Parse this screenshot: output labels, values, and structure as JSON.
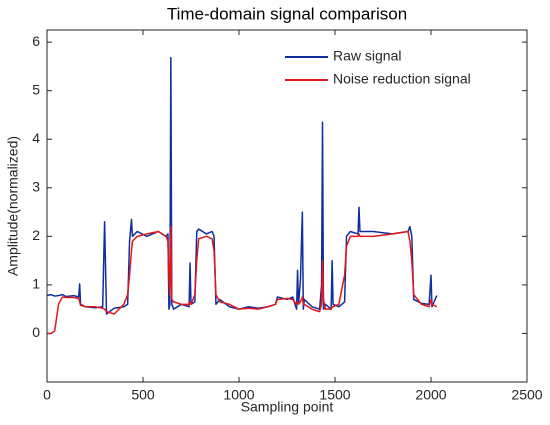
{
  "chart_data": {
    "type": "line",
    "title": "Time-domain signal comparison",
    "x_label": "Sampling point",
    "y_label": "Amplitude(normalized)",
    "xlim": [
      0,
      2500
    ],
    "ylim": [
      -1,
      6.25
    ],
    "xticks": [
      0,
      500,
      1000,
      1500,
      2000,
      2500
    ],
    "yticks": [
      0,
      1,
      2,
      3,
      4,
      5,
      6
    ],
    "legend": "upper right",
    "grid": false,
    "x": [
      0,
      20,
      40,
      60,
      80,
      100,
      140,
      165,
      170,
      175,
      200,
      250,
      290,
      300,
      310,
      350,
      400,
      420,
      430,
      440,
      445,
      470,
      520,
      580,
      620,
      630,
      635,
      640,
      645,
      650,
      660,
      700,
      740,
      745,
      750,
      770,
      780,
      790,
      830,
      860,
      870,
      880,
      900,
      950,
      1000,
      1050,
      1100,
      1150,
      1190,
      1200,
      1250,
      1280,
      1300,
      1305,
      1310,
      1320,
      1330,
      1335,
      1340,
      1380,
      1420,
      1430,
      1435,
      1440,
      1450,
      1480,
      1485,
      1490,
      1520,
      1550,
      1560,
      1580,
      1620,
      1625,
      1630,
      1700,
      1800,
      1880,
      1890,
      1900,
      1910,
      1950,
      1990,
      2000,
      2005,
      2030
    ],
    "series": [
      {
        "name": "Raw signal",
        "color": "#0d2fa0",
        "values": [
          0.78,
          0.8,
          0.77,
          0.78,
          0.8,
          0.76,
          0.78,
          0.75,
          1.02,
          0.6,
          0.55,
          0.53,
          0.55,
          2.3,
          0.4,
          0.52,
          0.55,
          0.6,
          1.9,
          2.35,
          2.0,
          2.1,
          2.0,
          2.1,
          2.0,
          2.05,
          0.5,
          0.6,
          5.68,
          0.6,
          0.5,
          0.6,
          0.55,
          1.45,
          0.6,
          0.65,
          2.1,
          2.15,
          2.05,
          2.1,
          2.0,
          0.6,
          0.7,
          0.55,
          0.5,
          0.55,
          0.52,
          0.55,
          0.6,
          0.75,
          0.7,
          0.75,
          0.5,
          1.3,
          0.6,
          1.1,
          2.5,
          0.5,
          0.7,
          0.55,
          0.5,
          1.0,
          4.35,
          0.5,
          0.6,
          0.5,
          1.5,
          0.6,
          0.55,
          0.65,
          2.0,
          2.1,
          2.05,
          2.6,
          2.1,
          2.1,
          2.05,
          2.1,
          2.2,
          2.0,
          0.7,
          0.62,
          0.6,
          1.2,
          0.55,
          0.78
        ]
      },
      {
        "name": "Noise reduction signal",
        "color": "#e3171b",
        "values": [
          0,
          0,
          0.05,
          0.6,
          0.75,
          0.74,
          0.74,
          0.72,
          0.65,
          0.58,
          0.55,
          0.55,
          0.52,
          0.5,
          0.45,
          0.4,
          0.6,
          0.8,
          1.2,
          1.7,
          1.9,
          2.0,
          2.05,
          2.1,
          2.0,
          1.9,
          1.2,
          0.8,
          2.2,
          0.7,
          0.65,
          0.6,
          0.6,
          0.65,
          0.6,
          0.8,
          1.5,
          1.95,
          2.0,
          1.95,
          1.7,
          0.8,
          0.65,
          0.6,
          0.5,
          0.52,
          0.5,
          0.55,
          0.6,
          0.7,
          0.72,
          0.7,
          0.6,
          0.65,
          0.6,
          0.65,
          0.75,
          0.6,
          0.6,
          0.5,
          0.45,
          0.6,
          1.5,
          0.7,
          0.5,
          0.5,
          0.55,
          0.55,
          0.6,
          1.2,
          1.8,
          2.0,
          2.0,
          2.05,
          2.0,
          2.0,
          2.05,
          2.1,
          1.9,
          1.5,
          0.8,
          0.6,
          0.55,
          0.7,
          0.6,
          0.55
        ]
      }
    ]
  }
}
